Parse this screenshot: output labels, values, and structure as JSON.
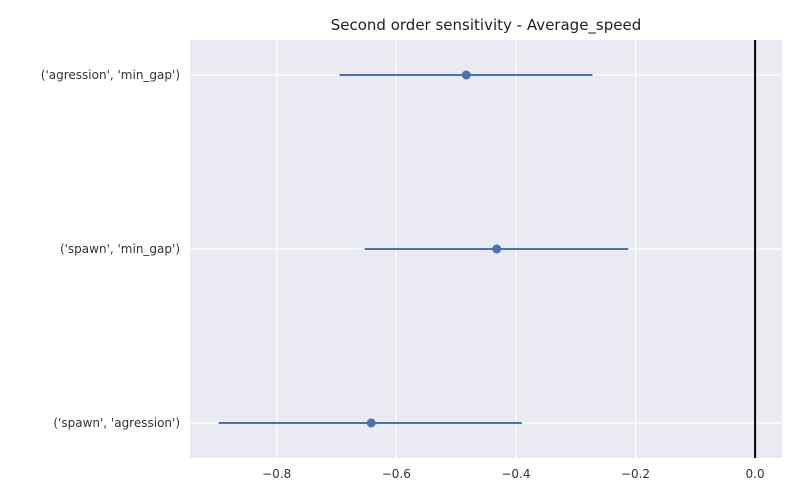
{
  "chart_data": {
    "type": "scatter",
    "title": "Second order sensitivity  -  Average_speed",
    "xlabel": "",
    "ylabel": "",
    "xlim": [
      -0.945,
      0.045
    ],
    "xticks": [
      -0.8,
      -0.6,
      -0.4,
      -0.2,
      0.0
    ],
    "xtick_labels": [
      "−0.8",
      "−0.6",
      "−0.4",
      "−0.2",
      "0.0"
    ],
    "grid": true,
    "reference_line_x": 0.0,
    "categories": [
      "('agression', 'min_gap')",
      "('spawn', 'min_gap')",
      "('spawn', 'agression')"
    ],
    "series": [
      {
        "values": [
          -0.483,
          -0.432,
          -0.642
        ],
        "lower": [
          -0.695,
          -0.653,
          -0.897
        ],
        "upper": [
          -0.272,
          -0.212,
          -0.39
        ]
      }
    ],
    "colors": {
      "series": "#4c72b0",
      "background": "#eaeaf2",
      "grid": "#ffffff",
      "reference": "#000000"
    }
  }
}
